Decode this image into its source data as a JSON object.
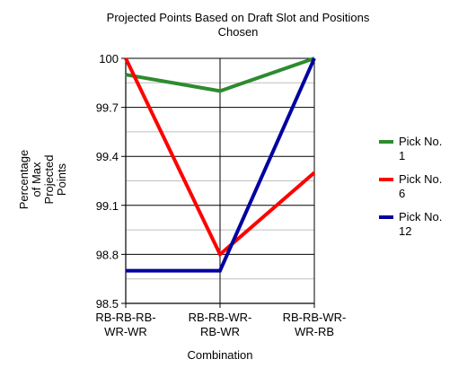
{
  "chart_data": {
    "type": "line",
    "title_lines": [
      "Projected Points Based on Draft Slot and Positions",
      "Chosen"
    ],
    "xlabel": "Combination",
    "ylabel_lines": [
      "Percentage",
      "of Max",
      "Projected",
      "Points"
    ],
    "categories": [
      [
        "RB-RB-RB-",
        "WR-WR"
      ],
      [
        "RB-RB-WR-",
        "RB-WR"
      ],
      [
        "RB-RB-WR-",
        "WR-RB"
      ]
    ],
    "ylim": [
      98.5,
      100
    ],
    "y_ticks": [
      98.5,
      98.8,
      99.1,
      99.4,
      99.7,
      100
    ],
    "y_tick_labels": [
      "98.5",
      "98.8",
      "99.1",
      "99.4",
      "99.7",
      "100"
    ],
    "grid": true,
    "legend_position": "right",
    "series": [
      {
        "name_lines": [
          "Pick No.",
          "1"
        ],
        "color": "#2e8b2e",
        "values": [
          99.9,
          99.8,
          100
        ]
      },
      {
        "name_lines": [
          "Pick No.",
          "6"
        ],
        "color": "#ff0000",
        "values": [
          100,
          98.8,
          99.3
        ]
      },
      {
        "name_lines": [
          "Pick No.",
          "12"
        ],
        "color": "#0000a0",
        "values": [
          98.7,
          98.7,
          100
        ]
      }
    ]
  }
}
